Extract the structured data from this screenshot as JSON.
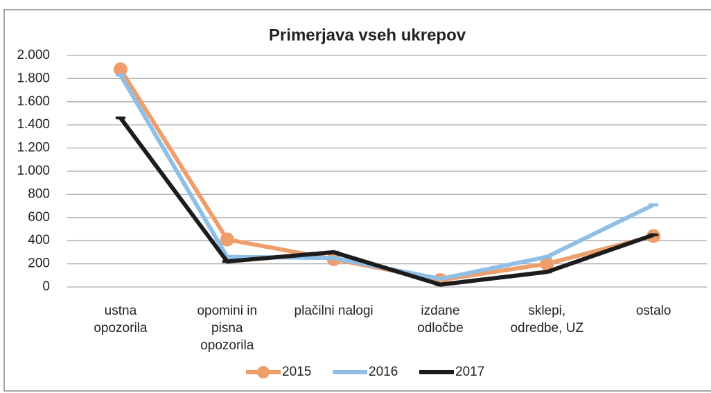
{
  "chart_data": {
    "type": "line",
    "title": "Primerjava vseh ukrepov",
    "categories": [
      "ustna\nopozorila",
      "opomini in\npisna\nopozorila",
      "plačilni nalogi",
      "izdane\nodločbe",
      "sklepi,\nodredbe, UZ",
      "ostalo"
    ],
    "series": [
      {
        "name": "2015",
        "color": "#ee9e6a",
        "values": [
          1880,
          410,
          240,
          60,
          200,
          440
        ]
      },
      {
        "name": "2016",
        "color": "#8fbfe6",
        "values": [
          1830,
          260,
          250,
          70,
          260,
          710
        ]
      },
      {
        "name": "2017",
        "color": "#1c1c1c",
        "values": [
          1460,
          220,
          300,
          20,
          130,
          450
        ]
      }
    ],
    "ylim": [
      0,
      2000
    ],
    "yticks": [
      0,
      200,
      400,
      600,
      800,
      {
        "value": 1000,
        "label": "1.000"
      },
      {
        "value": 1200,
        "label": "1.200"
      },
      {
        "value": 1400,
        "label": "1.400"
      },
      {
        "value": 1600,
        "label": "1.600"
      },
      {
        "value": 1800,
        "label": "1.800"
      },
      {
        "value": 2000,
        "label": "2.000"
      }
    ],
    "grid": true,
    "legend": "bottom"
  }
}
